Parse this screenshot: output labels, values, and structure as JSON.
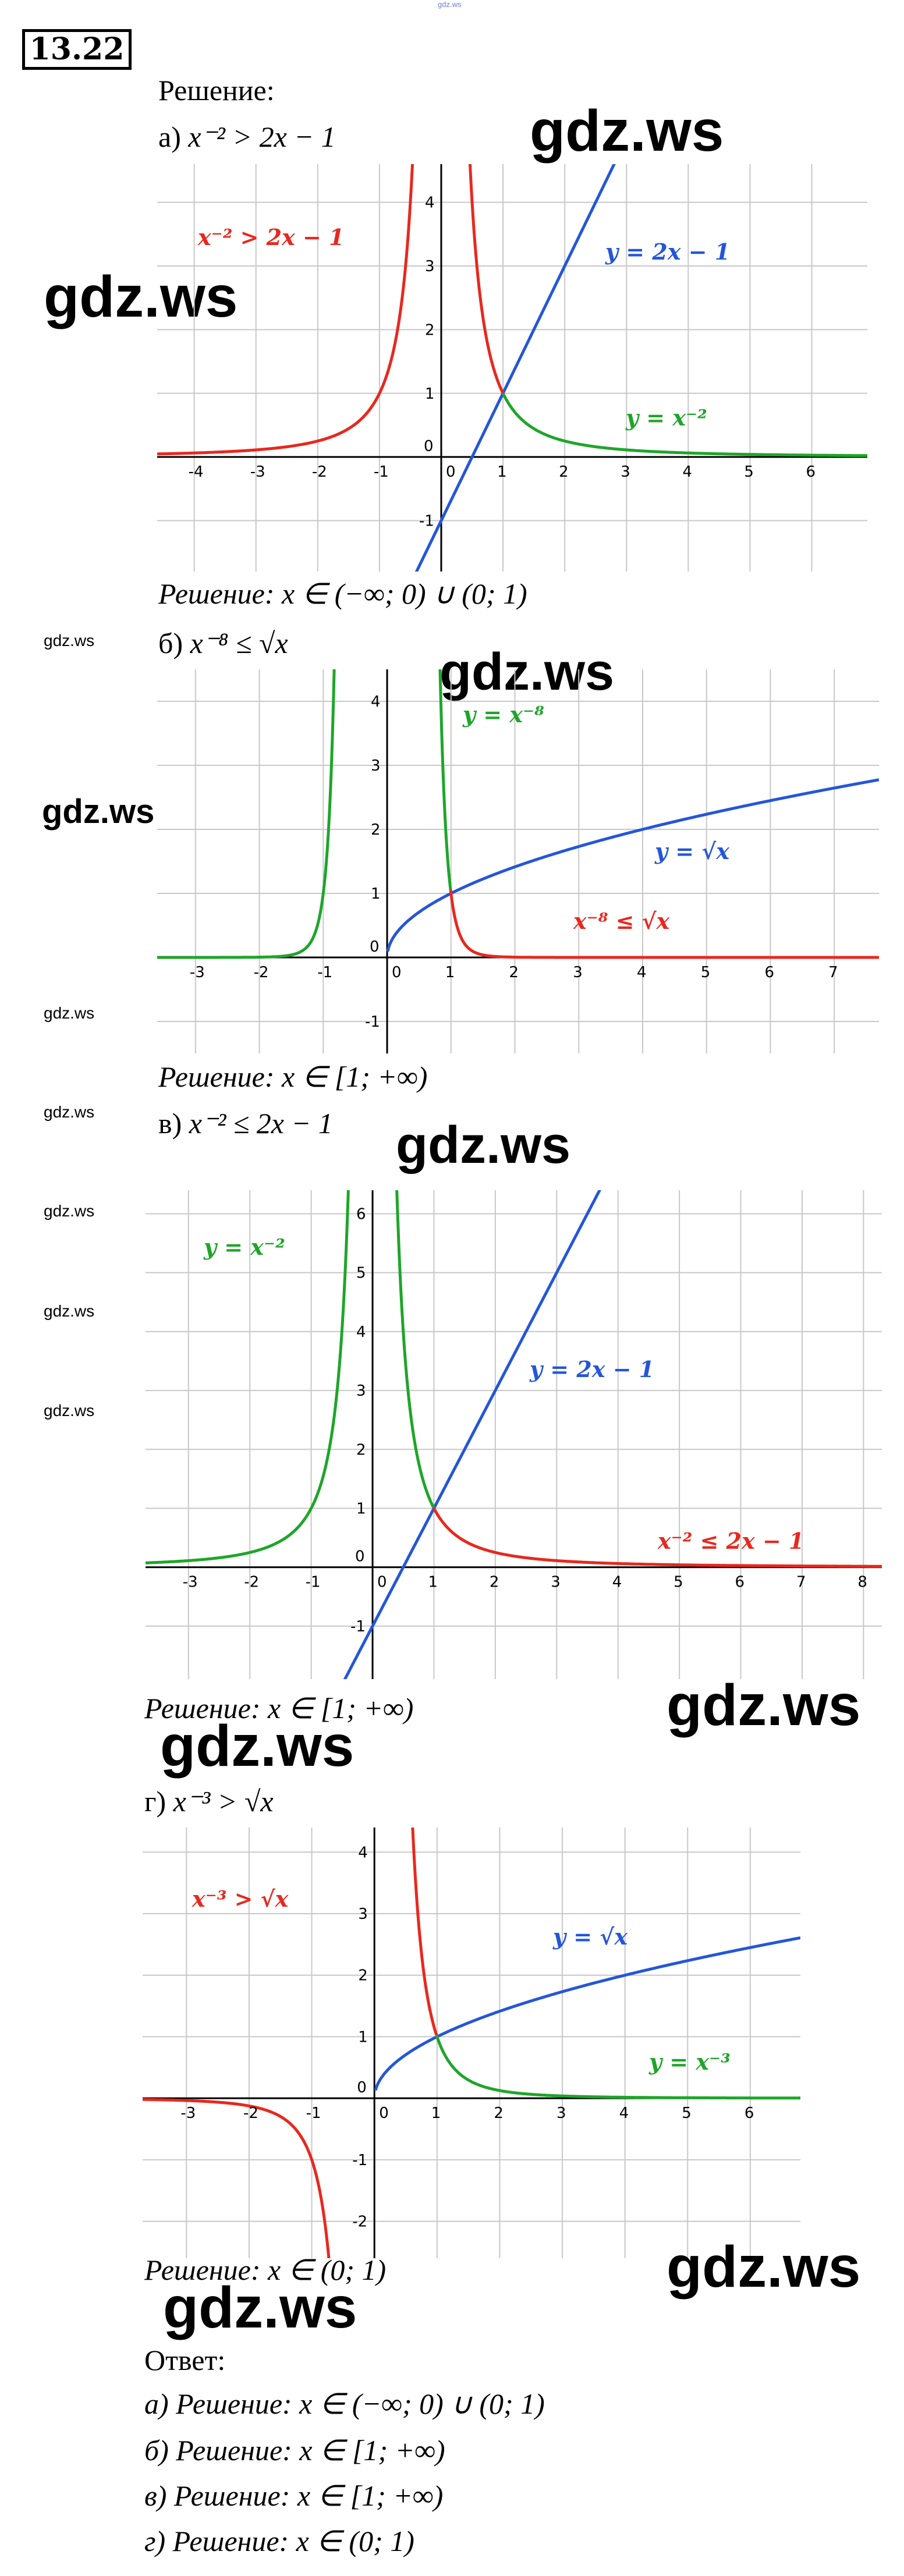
{
  "watermark_top": "gdz.ws",
  "problem_number": "13.22",
  "solution_heading": "Решение:",
  "parts": [
    {
      "id": "a",
      "prefix": "а)",
      "inequality": "x⁻² > 2x − 1",
      "result": "Решение: x ∈ (−∞; 0) ∪ (0; 1)",
      "labels": {
        "red": "x⁻² > 2x − 1",
        "blue": "y = 2x − 1",
        "green": "y = x⁻²"
      }
    },
    {
      "id": "b",
      "prefix": "б)",
      "inequality": "x⁻⁸ ≤ √x",
      "result": "Решение: x ∈ [1; +∞)",
      "labels": {
        "green": "y = x⁻⁸",
        "blue": "y = √x",
        "red": "x⁻⁸ ≤ √x"
      }
    },
    {
      "id": "v",
      "prefix": "в)",
      "inequality": "x⁻² ≤ 2x − 1",
      "result": "Решение: x ∈ [1; +∞)",
      "labels": {
        "green": "y = x⁻²",
        "blue": "y = 2x − 1",
        "red": "x⁻² ≤ 2x − 1"
      }
    },
    {
      "id": "g",
      "prefix": "г)",
      "inequality": "x⁻³ > √x",
      "result": "Решение: x ∈ (0; 1)",
      "labels": {
        "red": "x⁻³ > √x",
        "blue": "y = √x",
        "green": "y = x⁻³"
      }
    }
  ],
  "answer_heading": "Ответ:",
  "answers": [
    "а) Решение: x ∈ (−∞; 0) ∪ (0; 1)",
    "б) Решение: x ∈ [1; +∞)",
    "в)  Решение: x ∈ [1; +∞)",
    "г) Решение: x ∈ (0; 1)"
  ],
  "watermark": "gdz.ws",
  "colors": {
    "red": "#e8281e",
    "blue": "#2456d8",
    "green": "#1fa52a",
    "grid": "#c8c8c8"
  },
  "chart_data": [
    {
      "type": "line",
      "id": "a",
      "xlim": [
        -4.6,
        6.9
      ],
      "ylim": [
        -1.8,
        4.6
      ],
      "x_ticks": [
        -4,
        -3,
        -2,
        -1,
        0,
        1,
        2,
        3,
        4,
        5,
        6
      ],
      "y_ticks": [
        -1,
        0,
        1,
        2,
        3,
        4
      ],
      "series": [
        {
          "name": "y = 2x − 1",
          "color": "blue",
          "formula": "2x-1"
        },
        {
          "name": "y = x⁻²",
          "color": "mixed",
          "formula": "x^-2"
        }
      ]
    },
    {
      "type": "line",
      "id": "b",
      "xlim": [
        -3.6,
        7.7
      ],
      "ylim": [
        -1.5,
        4.5
      ],
      "x_ticks": [
        -3,
        -2,
        -1,
        0,
        1,
        2,
        3,
        4,
        5,
        6,
        7
      ],
      "y_ticks": [
        -1,
        0,
        1,
        2,
        3,
        4
      ],
      "series": [
        {
          "name": "y = √x",
          "color": "blue",
          "formula": "sqrt(x)"
        },
        {
          "name": "y = x⁻⁸",
          "color": "mixed",
          "formula": "x^-8"
        }
      ]
    },
    {
      "type": "line",
      "id": "v",
      "xlim": [
        -3.7,
        8.3
      ],
      "ylim": [
        -1.9,
        6.4
      ],
      "x_ticks": [
        -3,
        -2,
        -1,
        0,
        1,
        2,
        3,
        4,
        5,
        6,
        7,
        8
      ],
      "y_ticks": [
        -1,
        0,
        1,
        2,
        3,
        4,
        5,
        6
      ],
      "series": [
        {
          "name": "y = 2x − 1",
          "color": "blue",
          "formula": "2x-1"
        },
        {
          "name": "y = x⁻²",
          "color": "mixed",
          "formula": "x^-2"
        }
      ]
    },
    {
      "type": "line",
      "id": "g",
      "xlim": [
        -3.7,
        6.8
      ],
      "ylim": [
        -2.6,
        4.4
      ],
      "x_ticks": [
        -3,
        -2,
        -1,
        0,
        1,
        2,
        3,
        4,
        5,
        6
      ],
      "y_ticks": [
        -2,
        -1,
        0,
        1,
        2,
        3,
        4
      ],
      "series": [
        {
          "name": "y = √x",
          "color": "blue",
          "formula": "sqrt(x)"
        },
        {
          "name": "y = x⁻³",
          "color": "mixed",
          "formula": "x^-3"
        }
      ]
    }
  ]
}
